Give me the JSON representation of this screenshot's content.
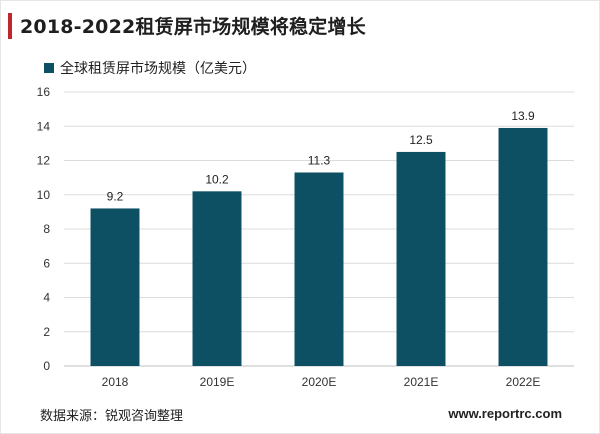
{
  "title": "2018-2022租赁屏市场规模将稳定增长",
  "colors": {
    "accent": "#c0272d",
    "bar": "#0e5063",
    "axis": "#d9d9d9",
    "grid": "#dcdcdc"
  },
  "chart_data": {
    "type": "bar",
    "categories": [
      "2018",
      "2019E",
      "2020E",
      "2021E",
      "2022E"
    ],
    "series": [
      {
        "name": "全球租赁屏市场规模（亿美元）",
        "values": [
          9.2,
          10.2,
          11.3,
          12.5,
          13.9
        ]
      }
    ],
    "data_labels": [
      "9.2",
      "10.2",
      "11.3",
      "12.5",
      "13.9"
    ],
    "yticks": [
      0,
      2,
      4,
      6,
      8,
      10,
      12,
      14,
      16
    ],
    "ylim": [
      0,
      16
    ],
    "grid": true,
    "legend_position": "top-left",
    "xlabel": "",
    "ylabel": ""
  },
  "footer": {
    "source": "数据来源：锐观咨询整理",
    "website": "www.reportrc.com"
  }
}
